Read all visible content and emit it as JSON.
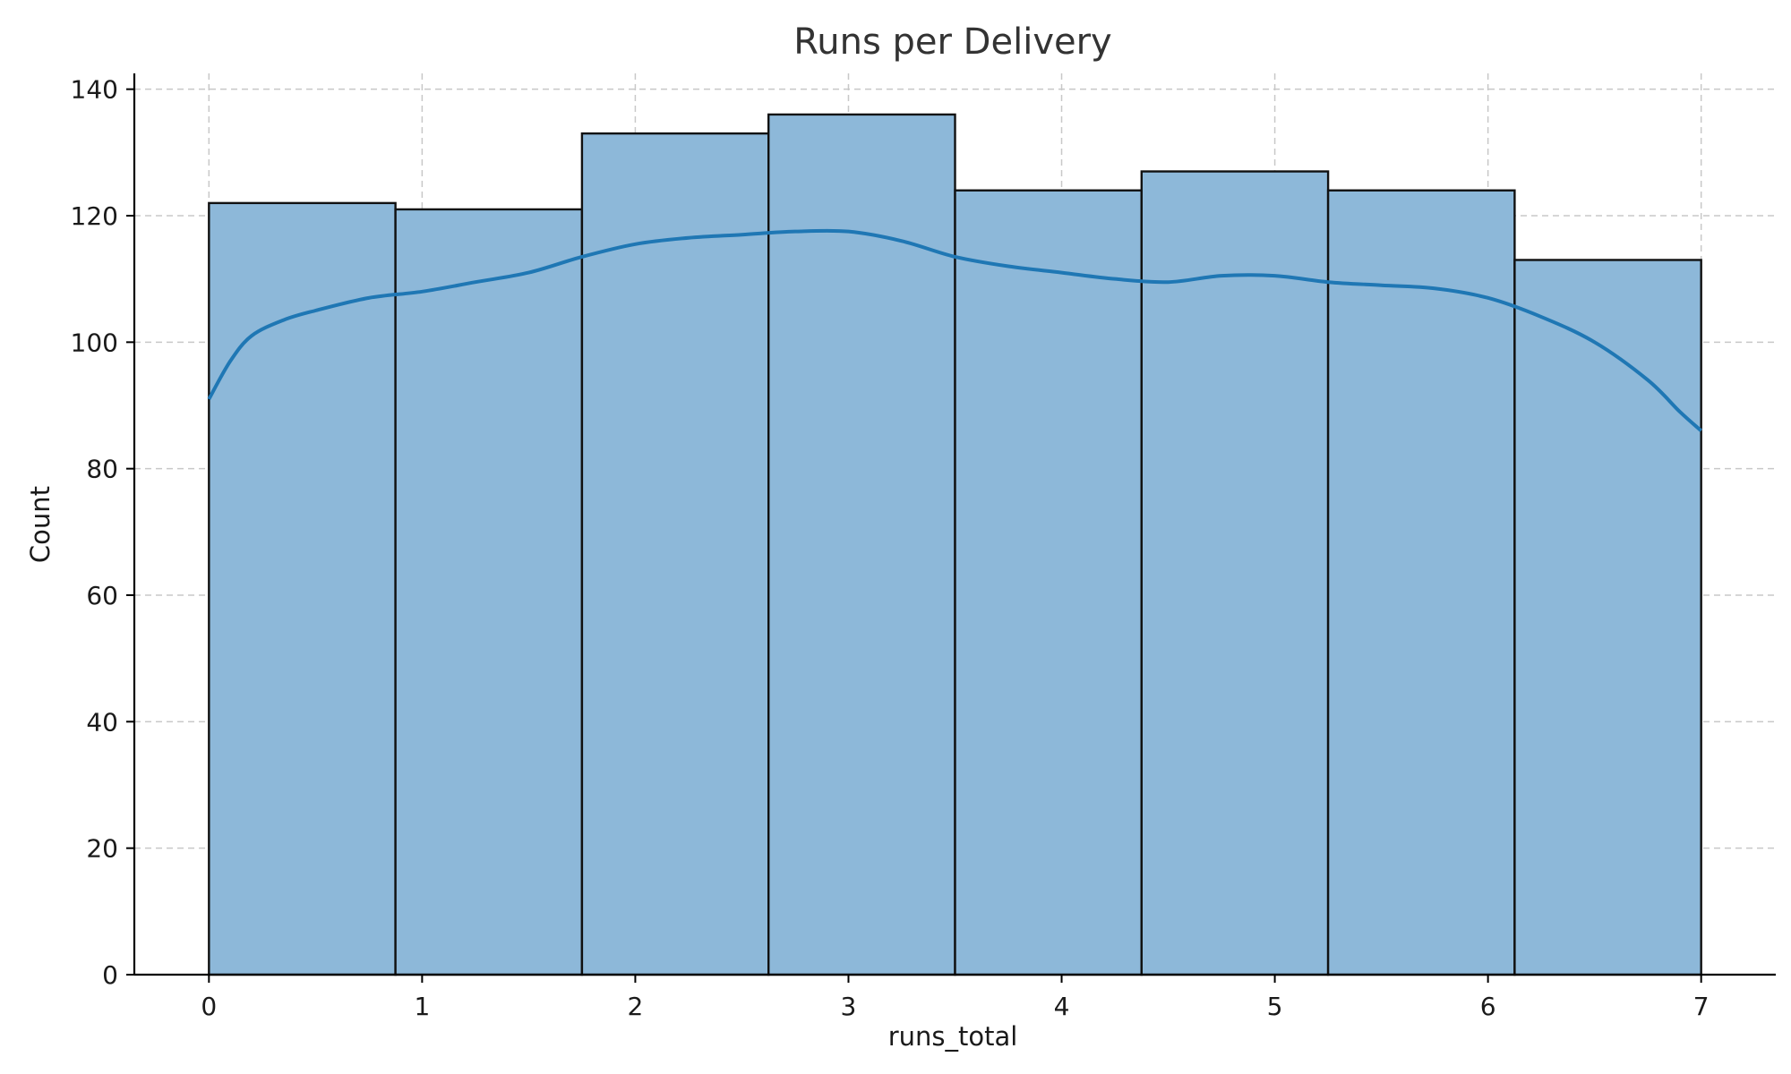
{
  "chart_data": {
    "type": "bar",
    "title": "Runs per Delivery",
    "xlabel": "runs_total",
    "ylabel": "Count",
    "xlim": [
      -0.35,
      7.35
    ],
    "ylim": [
      0,
      142.5
    ],
    "x_ticks": [
      0,
      1,
      2,
      3,
      4,
      5,
      6,
      7
    ],
    "y_ticks": [
      0,
      20,
      40,
      60,
      80,
      100,
      120,
      140
    ],
    "bin_edges": [
      0,
      0.875,
      1.75,
      2.625,
      3.5,
      4.375,
      5.25,
      6.125,
      7
    ],
    "values": [
      122,
      121,
      133,
      136,
      124,
      127,
      124,
      113
    ],
    "kde": {
      "x": [
        0,
        0.1,
        0.2,
        0.35,
        0.5,
        0.75,
        1.0,
        1.25,
        1.5,
        1.75,
        2.0,
        2.25,
        2.5,
        2.75,
        3.0,
        3.25,
        3.5,
        3.75,
        4.0,
        4.25,
        4.5,
        4.75,
        5.0,
        5.25,
        5.5,
        5.75,
        6.0,
        6.25,
        6.5,
        6.75,
        6.9,
        7.0
      ],
      "y": [
        91,
        97,
        101,
        103.5,
        105,
        107,
        108,
        109.5,
        111,
        113.5,
        115.5,
        116.5,
        117,
        117.5,
        117.5,
        116,
        113.5,
        112,
        111,
        110,
        109.5,
        110.5,
        110.5,
        109.5,
        109,
        108.5,
        107,
        104,
        100,
        94,
        89,
        86
      ]
    },
    "grid": true,
    "colors": {
      "bar": "#8db8d9",
      "kde": "#1f77b4",
      "edge": "#111111"
    }
  }
}
